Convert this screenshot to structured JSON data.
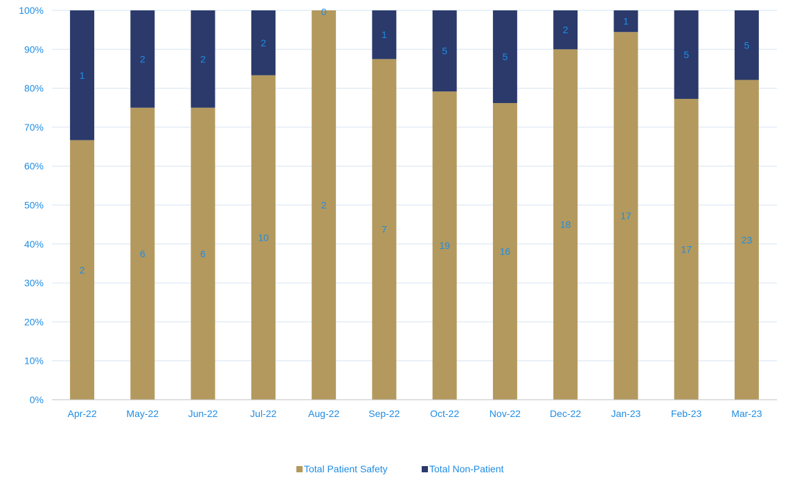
{
  "chart_data": {
    "type": "bar",
    "stacked": true,
    "percent_stacked": true,
    "categories": [
      "Apr-22",
      "May-22",
      "Jun-22",
      "Jul-22",
      "Aug-22",
      "Sep-22",
      "Oct-22",
      "Nov-22",
      "Dec-22",
      "Jan-23",
      "Feb-23",
      "Mar-23"
    ],
    "series": [
      {
        "name": "Total Patient Safety",
        "color": "#b3995d",
        "values": [
          2,
          6,
          6,
          10,
          2,
          7,
          19,
          16,
          18,
          17,
          17,
          23
        ]
      },
      {
        "name": "Total Non-Patient",
        "color": "#2b3a6b",
        "values": [
          1,
          2,
          2,
          2,
          0,
          1,
          5,
          5,
          2,
          1,
          5,
          5
        ]
      }
    ],
    "y_ticks": [
      "0%",
      "10%",
      "20%",
      "30%",
      "40%",
      "50%",
      "60%",
      "70%",
      "80%",
      "90%",
      "100%"
    ],
    "ylim": [
      0,
      100
    ],
    "title": "",
    "xlabel": "",
    "ylabel": "",
    "grid": true,
    "legend_position": "bottom",
    "label_color": "#1f8ce3",
    "grid_color": "#d6e4f0"
  }
}
